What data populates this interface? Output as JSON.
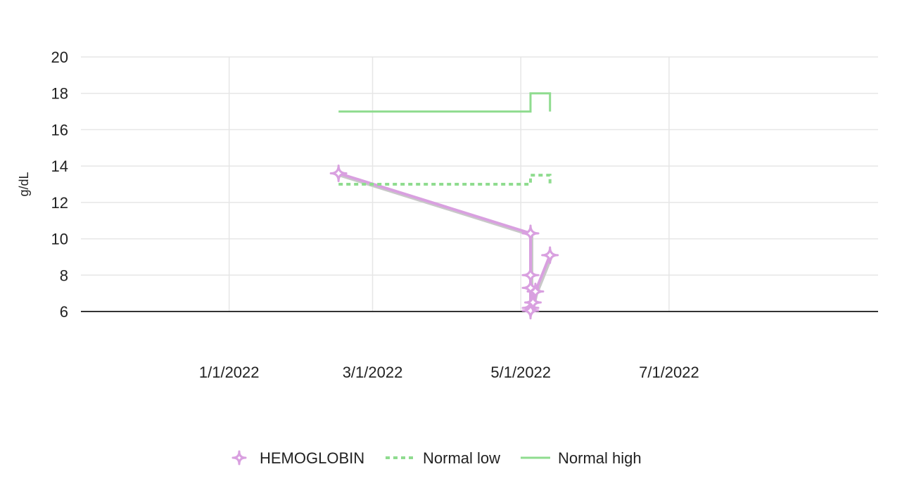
{
  "chart_data": {
    "type": "line",
    "title": "",
    "xlabel": "",
    "ylabel": "g/dL",
    "ylim": [
      6,
      20
    ],
    "xlim": [
      "2021-11-01",
      "2022-09-25"
    ],
    "x_ticks": [
      "2022-01-01",
      "2022-03-01",
      "2022-05-01",
      "2022-07-01"
    ],
    "x_tick_labels": [
      "1/1/2022",
      "3/1/2022",
      "5/1/2022",
      "7/1/2022"
    ],
    "y_ticks": [
      6,
      8,
      10,
      12,
      14,
      16,
      18,
      20
    ],
    "grid": true,
    "legend_position": "bottom",
    "series": [
      {
        "name": "HEMOGLOBIN",
        "style": "line-diamond-markers",
        "color": "#d9a0e0",
        "x": [
          "2022-02-15",
          "2022-05-05",
          "2022-05-05",
          "2022-05-05",
          "2022-05-05",
          "2022-05-05",
          "2022-05-06",
          "2022-05-07",
          "2022-05-13"
        ],
        "y": [
          13.6,
          10.3,
          8.0,
          7.3,
          6.2,
          6.05,
          6.5,
          7.1,
          9.1
        ]
      },
      {
        "name": "Normal low",
        "style": "dotted-step",
        "color": "#8fdc8f",
        "x": [
          "2022-02-15",
          "2022-05-05",
          "2022-05-05",
          "2022-05-13",
          "2022-05-13"
        ],
        "y": [
          13.0,
          13.0,
          13.5,
          13.5,
          13.0
        ]
      },
      {
        "name": "Normal high",
        "style": "solid-step",
        "color": "#8fdc8f",
        "x": [
          "2022-02-15",
          "2022-05-05",
          "2022-05-05",
          "2022-05-13",
          "2022-05-13"
        ],
        "y": [
          17.0,
          17.0,
          18.0,
          18.0,
          17.0
        ]
      }
    ]
  }
}
